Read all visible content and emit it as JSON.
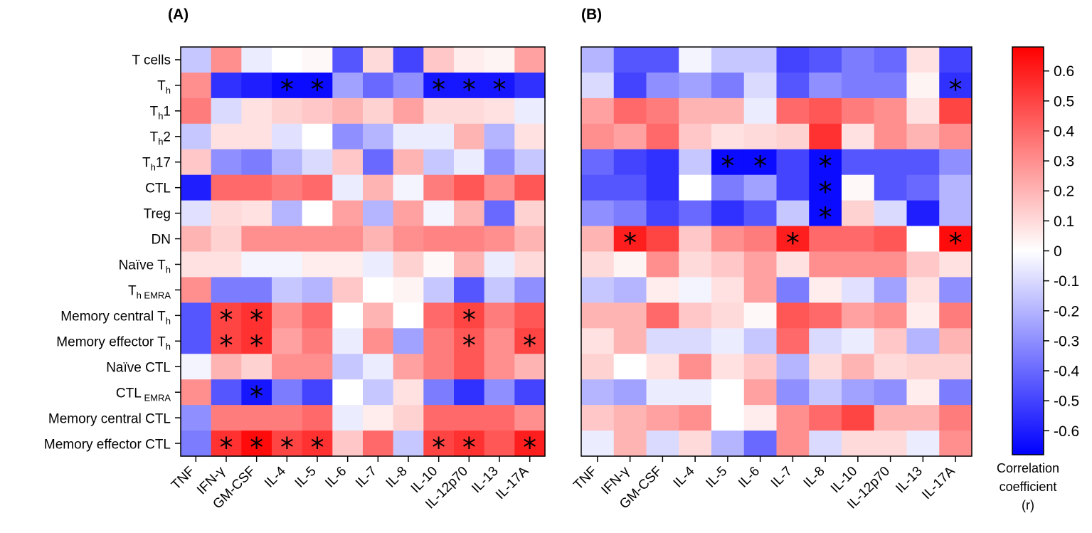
{
  "chart_data": [
    {
      "type": "heatmap",
      "panel_label": "(A)",
      "rows": [
        "T cells",
        "Th",
        "Th1",
        "Th2",
        "Th17",
        "CTL",
        "Treg",
        "DN",
        "Naïve Th",
        "Th EMRA",
        "Memory central Th",
        "Memory effector Th",
        "Naïve CTL",
        "CTL EMRA",
        "Memory central CTL",
        "Memory effector CTL"
      ],
      "columns": [
        "TNF",
        "IFN-γ",
        "GM-CSF",
        "IL-4",
        "IL-5",
        "IL-6",
        "IL-7",
        "IL-8",
        "IL-10",
        "IL-12p70",
        "IL-13",
        "IL-17A"
      ],
      "values": [
        [
          -0.15,
          0.3,
          -0.05,
          0.0,
          0.02,
          -0.45,
          0.1,
          -0.5,
          0.15,
          0.05,
          0.03,
          0.25
        ],
        [
          0.3,
          -0.55,
          -0.6,
          -0.65,
          -0.65,
          -0.25,
          -0.4,
          -0.3,
          -0.62,
          -0.62,
          -0.62,
          -0.55
        ],
        [
          0.35,
          -0.1,
          0.08,
          0.12,
          0.15,
          0.2,
          0.12,
          0.25,
          0.1,
          0.1,
          0.08,
          -0.05
        ],
        [
          -0.15,
          0.08,
          0.08,
          -0.08,
          0.0,
          -0.3,
          -0.2,
          -0.05,
          -0.05,
          0.2,
          -0.2,
          0.08
        ],
        [
          0.15,
          -0.3,
          -0.35,
          -0.2,
          -0.1,
          0.15,
          -0.4,
          0.2,
          -0.15,
          -0.05,
          -0.3,
          -0.15
        ],
        [
          -0.6,
          0.4,
          0.4,
          0.35,
          0.4,
          -0.05,
          0.2,
          -0.03,
          0.35,
          0.45,
          0.3,
          0.45
        ],
        [
          -0.08,
          0.1,
          0.08,
          -0.2,
          0.0,
          0.25,
          -0.2,
          0.25,
          -0.03,
          0.2,
          -0.4,
          0.12
        ],
        [
          0.2,
          0.12,
          0.3,
          0.3,
          0.3,
          0.3,
          0.2,
          0.3,
          0.33,
          0.33,
          0.3,
          0.2
        ],
        [
          0.08,
          0.08,
          -0.03,
          -0.03,
          0.05,
          0.05,
          -0.05,
          0.12,
          0.02,
          0.2,
          -0.05,
          0.1
        ],
        [
          0.3,
          -0.35,
          -0.35,
          -0.15,
          -0.2,
          0.15,
          0.0,
          0.03,
          -0.15,
          -0.45,
          -0.15,
          -0.3
        ],
        [
          -0.45,
          0.5,
          0.55,
          0.3,
          0.4,
          0.0,
          0.2,
          0.0,
          0.4,
          0.5,
          0.35,
          0.45
        ],
        [
          -0.45,
          0.5,
          0.55,
          0.25,
          0.35,
          -0.05,
          0.3,
          -0.25,
          0.35,
          0.45,
          0.3,
          0.5
        ],
        [
          -0.03,
          0.2,
          0.12,
          0.3,
          0.3,
          -0.15,
          -0.05,
          0.25,
          0.35,
          0.45,
          0.3,
          0.2
        ],
        [
          0.3,
          -0.45,
          -0.62,
          -0.35,
          -0.5,
          0.0,
          -0.15,
          0.08,
          -0.35,
          -0.55,
          -0.3,
          -0.5
        ],
        [
          -0.3,
          0.35,
          0.35,
          0.35,
          0.4,
          -0.05,
          0.05,
          0.12,
          0.4,
          0.4,
          0.4,
          0.3
        ],
        [
          -0.35,
          0.55,
          0.65,
          0.5,
          0.55,
          0.15,
          0.4,
          -0.15,
          0.5,
          0.55,
          0.45,
          0.6
        ]
      ],
      "significant": [
        [
          1,
          3
        ],
        [
          1,
          4
        ],
        [
          1,
          8
        ],
        [
          1,
          9
        ],
        [
          1,
          10
        ],
        [
          10,
          1
        ],
        [
          10,
          2
        ],
        [
          10,
          9
        ],
        [
          11,
          1
        ],
        [
          11,
          2
        ],
        [
          11,
          9
        ],
        [
          11,
          11
        ],
        [
          13,
          2
        ],
        [
          15,
          1
        ],
        [
          15,
          2
        ],
        [
          15,
          3
        ],
        [
          15,
          4
        ],
        [
          15,
          8
        ],
        [
          15,
          9
        ],
        [
          15,
          11
        ]
      ],
      "significance_marker": "*"
    },
    {
      "type": "heatmap",
      "panel_label": "(B)",
      "rows": [
        "T cells",
        "Th",
        "Th1",
        "Th2",
        "Th17",
        "CTL",
        "Treg",
        "DN",
        "Naïve Th",
        "Th EMRA",
        "Memory central Th",
        "Memory effector Th",
        "Naïve CTL",
        "CTL EMRA",
        "Memory central CTL",
        "Memory effector CTL"
      ],
      "columns": [
        "TNF",
        "IFN-γ",
        "GM-CSF",
        "IL-4",
        "IL-5",
        "IL-6",
        "IL-7",
        "IL-8",
        "IL-10",
        "IL-12p70",
        "IL-13",
        "IL-17A"
      ],
      "values": [
        [
          -0.2,
          -0.45,
          -0.45,
          -0.03,
          -0.15,
          -0.15,
          -0.5,
          -0.45,
          -0.35,
          -0.4,
          0.08,
          -0.5
        ],
        [
          -0.1,
          -0.5,
          -0.3,
          -0.25,
          -0.35,
          -0.1,
          -0.45,
          -0.3,
          -0.35,
          -0.35,
          0.03,
          -0.55
        ],
        [
          0.25,
          0.4,
          0.35,
          0.2,
          0.2,
          -0.05,
          0.4,
          0.45,
          0.35,
          0.3,
          0.08,
          0.5
        ],
        [
          0.3,
          0.25,
          0.4,
          0.15,
          0.08,
          0.1,
          0.12,
          0.55,
          0.08,
          0.3,
          0.2,
          0.3
        ],
        [
          -0.4,
          -0.5,
          -0.55,
          -0.15,
          -0.65,
          -0.65,
          -0.5,
          -0.65,
          -0.45,
          -0.45,
          -0.45,
          -0.3
        ],
        [
          -0.45,
          -0.45,
          -0.55,
          0.0,
          -0.35,
          -0.25,
          -0.5,
          -0.65,
          0.02,
          -0.45,
          -0.4,
          -0.2
        ],
        [
          -0.3,
          -0.35,
          -0.5,
          -0.4,
          -0.55,
          -0.45,
          -0.15,
          -0.65,
          0.12,
          -0.1,
          -0.6,
          -0.2
        ],
        [
          0.2,
          0.6,
          0.5,
          0.15,
          0.3,
          0.35,
          0.6,
          0.4,
          0.4,
          0.45,
          0.0,
          0.65
        ],
        [
          0.1,
          0.03,
          0.3,
          0.1,
          0.15,
          0.25,
          0.08,
          0.3,
          0.3,
          0.3,
          0.15,
          0.08
        ],
        [
          -0.15,
          -0.2,
          0.05,
          -0.03,
          0.08,
          0.25,
          -0.35,
          0.05,
          -0.08,
          -0.25,
          0.08,
          -0.3
        ],
        [
          0.2,
          0.2,
          0.4,
          0.15,
          0.1,
          0.02,
          0.45,
          0.4,
          0.25,
          0.3,
          0.05,
          0.35
        ],
        [
          0.08,
          0.2,
          -0.1,
          -0.1,
          -0.05,
          -0.15,
          0.4,
          -0.1,
          -0.05,
          0.15,
          -0.2,
          0.2
        ],
        [
          0.12,
          0.0,
          0.08,
          0.3,
          0.08,
          0.15,
          -0.2,
          0.1,
          0.2,
          0.1,
          0.12,
          0.12
        ],
        [
          -0.2,
          -0.25,
          -0.05,
          -0.05,
          0.0,
          0.25,
          -0.3,
          -0.15,
          -0.25,
          -0.3,
          0.05,
          -0.35
        ],
        [
          0.15,
          0.2,
          0.25,
          0.3,
          0.0,
          0.05,
          0.3,
          0.4,
          0.5,
          0.2,
          0.2,
          0.35
        ],
        [
          -0.05,
          0.2,
          -0.1,
          0.1,
          -0.2,
          -0.4,
          0.3,
          -0.1,
          0.1,
          0.1,
          -0.05,
          0.3
        ]
      ],
      "significant": [
        [
          1,
          11
        ],
        [
          4,
          4
        ],
        [
          4,
          5
        ],
        [
          4,
          7
        ],
        [
          5,
          7
        ],
        [
          6,
          7
        ],
        [
          7,
          1
        ],
        [
          7,
          6
        ],
        [
          7,
          11
        ]
      ],
      "significance_marker": "*"
    }
  ],
  "colorbar": {
    "ticks": [
      "0.6",
      "0.5",
      "0.4",
      "0.3",
      "0.2",
      "0.1",
      "0",
      "-0.1",
      "-0.2",
      "-0.3",
      "-0.4",
      "-0.5",
      "-0.6"
    ],
    "tick_values": [
      0.6,
      0.5,
      0.4,
      0.3,
      0.2,
      0.1,
      0,
      -0.1,
      -0.2,
      -0.3,
      -0.4,
      -0.5,
      -0.6
    ],
    "range": [
      -0.68,
      0.68
    ],
    "title_lines": [
      "Correlation",
      "coefficient",
      "(r)"
    ]
  },
  "colors": {
    "negative": "#0000ff",
    "zero": "#ffffff",
    "positive": "#ff0000"
  }
}
